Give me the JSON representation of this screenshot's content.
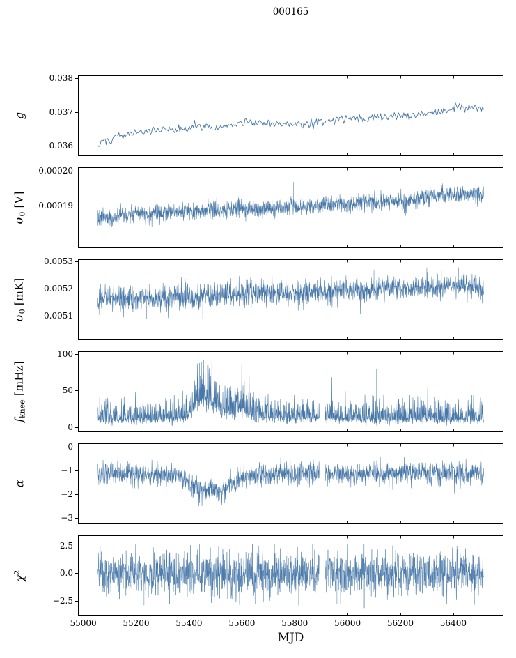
{
  "title": "000165",
  "xlabel": "MJD",
  "line_color": "#4878a8",
  "axis_color": "#000000",
  "x": {
    "lim": [
      54980,
      56590
    ],
    "data_range": [
      55055,
      56515
    ],
    "ticks": [
      55000,
      55200,
      55400,
      55600,
      55800,
      56000,
      56200,
      56400
    ],
    "tick_labels": [
      "55000",
      "55200",
      "55400",
      "55600",
      "55800",
      "56000",
      "56200",
      "56400"
    ]
  },
  "chart_data": {
    "type": "line",
    "title": "000165",
    "xlabel": "MJD",
    "shared_x": true,
    "panels": [
      {
        "id": "g",
        "ylabel": "g",
        "ylabel_parts": [
          {
            "t": "g",
            "i": true
          }
        ],
        "ylim": [
          0.0357,
          0.0381
        ],
        "yticks": [
          0.036,
          0.037,
          0.038
        ],
        "ytick_labels": [
          "0.036",
          "0.037",
          "0.038"
        ],
        "trend": [
          [
            55055,
            0.036
          ],
          [
            55080,
            0.03615
          ],
          [
            55120,
            0.03625
          ],
          [
            55160,
            0.03634
          ],
          [
            55200,
            0.0364
          ],
          [
            55260,
            0.03645
          ],
          [
            55300,
            0.0365
          ],
          [
            55340,
            0.03646
          ],
          [
            55400,
            0.03655
          ],
          [
            55450,
            0.0366
          ],
          [
            55500,
            0.03656
          ],
          [
            55560,
            0.03664
          ],
          [
            55620,
            0.0367
          ],
          [
            55680,
            0.0367
          ],
          [
            55720,
            0.03666
          ],
          [
            55780,
            0.03661
          ],
          [
            55840,
            0.03666
          ],
          [
            55900,
            0.0367
          ],
          [
            55960,
            0.03679
          ],
          [
            56020,
            0.03684
          ],
          [
            56080,
            0.0368
          ],
          [
            56140,
            0.03689
          ],
          [
            56200,
            0.0369
          ],
          [
            56260,
            0.03694
          ],
          [
            56320,
            0.037
          ],
          [
            56380,
            0.03709
          ],
          [
            56420,
            0.03719
          ],
          [
            56450,
            0.0371
          ],
          [
            56480,
            0.03714
          ],
          [
            56515,
            0.0371
          ]
        ],
        "noise": {
          "base": 6e-05,
          "trend_frac": 0,
          "up": 1,
          "down": 1
        },
        "clip": null,
        "events": [],
        "gaps": []
      },
      {
        "id": "sigma0_v",
        "ylabel": "σ0 [V]",
        "ylabel_parts": [
          {
            "t": "σ",
            "i": true
          },
          {
            "t": "0",
            "sub": true
          },
          {
            "t": " [V]"
          }
        ],
        "ylim": [
          0.000178,
          0.000201
        ],
        "yticks": [
          0.00019,
          0.0002
        ],
        "ytick_labels": [
          "0.00019",
          "0.00020"
        ],
        "trend": [
          [
            55055,
            0.0001865
          ],
          [
            55150,
            0.0001872
          ],
          [
            55250,
            0.0001878
          ],
          [
            55350,
            0.0001882
          ],
          [
            55450,
            0.0001888
          ],
          [
            55550,
            0.000189
          ],
          [
            55650,
            0.0001893
          ],
          [
            55750,
            0.0001896
          ],
          [
            55850,
            0.00019
          ],
          [
            55950,
            0.0001905
          ],
          [
            56050,
            0.0001908
          ],
          [
            56150,
            0.000191
          ],
          [
            56250,
            0.0001918
          ],
          [
            56300,
            0.0001928
          ],
          [
            56350,
            0.0001932
          ],
          [
            56420,
            0.000193
          ],
          [
            56515,
            0.0001933
          ]
        ],
        "noise": {
          "base": 1.2e-06,
          "trend_frac": 0,
          "up": 1,
          "down": 1
        },
        "clip": null,
        "events": [
          [
            55795,
            0.0001968
          ]
        ],
        "gaps": []
      },
      {
        "id": "sigma0_mk",
        "ylabel": "σ0 [mK]",
        "ylabel_parts": [
          {
            "t": "σ",
            "i": true
          },
          {
            "t": "0",
            "sub": true
          },
          {
            "t": " [mK]"
          }
        ],
        "ylim": [
          0.00501,
          0.00531
        ],
        "yticks": [
          0.0051,
          0.0052,
          0.0053
        ],
        "ytick_labels": [
          "0.0051",
          "0.0052",
          "0.0053"
        ],
        "trend": [
          [
            55055,
            0.005165
          ],
          [
            55150,
            0.005168
          ],
          [
            55250,
            0.005165
          ],
          [
            55350,
            0.00517
          ],
          [
            55450,
            0.005172
          ],
          [
            55550,
            0.005178
          ],
          [
            55650,
            0.005185
          ],
          [
            55750,
            0.005185
          ],
          [
            55850,
            0.00519
          ],
          [
            55950,
            0.005192
          ],
          [
            56050,
            0.005195
          ],
          [
            56150,
            0.0052
          ],
          [
            56250,
            0.005205
          ],
          [
            56350,
            0.005205
          ],
          [
            56515,
            0.00521
          ]
        ],
        "noise": {
          "base": 2.2e-05,
          "trend_frac": 0,
          "up": 1,
          "down": 1
        },
        "clip": [
          0.00505,
          0.00531
        ],
        "events": [
          [
            55790,
            0.0053
          ],
          [
            56300,
            0.00528
          ],
          [
            55600,
            0.00527
          ],
          [
            56355,
            0.00527
          ],
          [
            55340,
            0.00508
          ],
          [
            55240,
            0.00509
          ],
          [
            55452,
            0.00509
          ],
          [
            56420,
            0.00528
          ],
          [
            56100,
            0.00527
          ]
        ],
        "gaps": []
      },
      {
        "id": "f_knee",
        "ylabel": "fknee [mHz]",
        "ylabel_parts": [
          {
            "t": "f",
            "i": true
          },
          {
            "t": "knee",
            "sub": true
          },
          {
            "t": " [mHz]"
          }
        ],
        "ylim": [
          -6,
          104
        ],
        "yticks": [
          0,
          50,
          100
        ],
        "ytick_labels": [
          "0",
          "50",
          "100"
        ],
        "trend": [
          [
            55055,
            13
          ],
          [
            55100,
            12
          ],
          [
            55200,
            12
          ],
          [
            55300,
            13
          ],
          [
            55350,
            14
          ],
          [
            55390,
            16
          ],
          [
            55410,
            24
          ],
          [
            55430,
            38
          ],
          [
            55450,
            42
          ],
          [
            55465,
            42
          ],
          [
            55480,
            38
          ],
          [
            55500,
            33
          ],
          [
            55520,
            28
          ],
          [
            55545,
            23
          ],
          [
            55570,
            24
          ],
          [
            55590,
            32
          ],
          [
            55605,
            28
          ],
          [
            55625,
            22
          ],
          [
            55655,
            18
          ],
          [
            55700,
            16
          ],
          [
            55750,
            15
          ],
          [
            55800,
            15
          ],
          [
            55900,
            14
          ],
          [
            56000,
            13
          ],
          [
            56100,
            14
          ],
          [
            56200,
            13
          ],
          [
            56300,
            13
          ],
          [
            56400,
            13
          ],
          [
            56515,
            13
          ]
        ],
        "noise": {
          "base": 2.5,
          "trend_frac": 0.35,
          "up": 1.8,
          "down": 0.55
        },
        "clip": [
          3,
          100
        ],
        "events": [
          [
            55062,
            42
          ],
          [
            55440,
            88
          ],
          [
            55456,
            92
          ],
          [
            55470,
            85
          ],
          [
            55487,
            75
          ],
          [
            55600,
            57
          ],
          [
            56110,
            80
          ],
          [
            56332,
            36
          ],
          [
            55940,
            27
          ],
          [
            56205,
            29
          ]
        ],
        "gaps": [
          [
            55893,
            55913
          ]
        ]
      },
      {
        "id": "alpha",
        "ylabel": "α",
        "ylabel_parts": [
          {
            "t": "α",
            "i": true
          }
        ],
        "ylim": [
          -3.25,
          0.15
        ],
        "yticks": [
          0,
          -1,
          -2,
          -3
        ],
        "ytick_labels": [
          "0",
          "−1",
          "−2",
          "−3"
        ],
        "trend": [
          [
            55055,
            -1.15
          ],
          [
            55200,
            -1.15
          ],
          [
            55300,
            -1.18
          ],
          [
            55330,
            -1.26
          ],
          [
            55360,
            -1.2
          ],
          [
            55390,
            -1.45
          ],
          [
            55420,
            -1.7
          ],
          [
            55460,
            -1.8
          ],
          [
            55500,
            -1.82
          ],
          [
            55540,
            -1.8
          ],
          [
            55570,
            -1.55
          ],
          [
            55600,
            -1.35
          ],
          [
            55625,
            -1.2
          ],
          [
            55700,
            -1.15
          ],
          [
            56000,
            -1.13
          ],
          [
            56515,
            -1.12
          ]
        ],
        "noise": {
          "base": 0.24,
          "trend_frac": 0,
          "up": 1,
          "down": 1
        },
        "clip": [
          -3.0,
          -0.42
        ],
        "events": [],
        "gaps": [
          [
            55893,
            55913
          ]
        ]
      },
      {
        "id": "chi2",
        "ylabel": "χ2",
        "ylabel_parts": [
          {
            "t": "χ",
            "i": true
          },
          {
            "t": "2",
            "sup": true
          }
        ],
        "ylim": [
          -3.9,
          3.5
        ],
        "yticks": [
          2.5,
          0,
          -2.5
        ],
        "ytick_labels": [
          "2.5",
          "0.0",
          "−2.5"
        ],
        "trend": [
          [
            55055,
            0
          ],
          [
            56515,
            0
          ]
        ],
        "noise": {
          "base": 1.0,
          "trend_frac": 0,
          "up": 1,
          "down": 1
        },
        "clip": [
          -3.15,
          2.7
        ],
        "events": [
          [
            55230,
            -2.9
          ],
          [
            55650,
            -2.75
          ],
          [
            55960,
            -2.8
          ],
          [
            56480,
            -2.85
          ]
        ],
        "gaps": [
          [
            55893,
            55913
          ]
        ]
      }
    ]
  }
}
